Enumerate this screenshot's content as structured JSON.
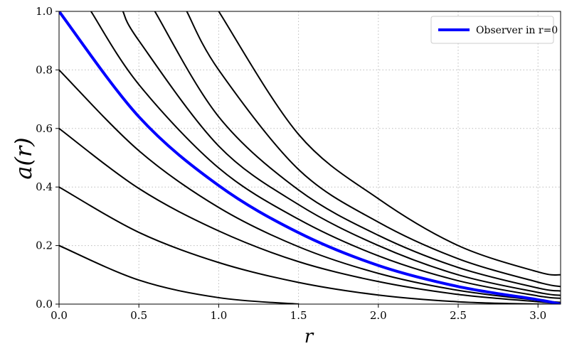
{
  "chart_data": {
    "type": "line",
    "xlabel": "r",
    "ylabel": "a(r)",
    "xlim": [
      0,
      3.1416
    ],
    "ylim": [
      0,
      1.0
    ],
    "xticks": [
      "0.0",
      "0.5",
      "1.0",
      "1.5",
      "2.0",
      "2.5",
      "3.0"
    ],
    "yticks": [
      "0.0",
      "0.2",
      "0.4",
      "0.6",
      "0.8",
      "1.0"
    ],
    "grid": true,
    "legend_position": "top-right",
    "legend": [
      "Observer in r=0"
    ],
    "colors": {
      "highlight": "#0000ff",
      "curves": "#000000",
      "grid": "#bbbbbb"
    },
    "series": [
      {
        "name": "",
        "color": "#000000",
        "width": 2,
        "x": [
          0.0,
          0.5,
          1.0,
          1.5
        ],
        "y": [
          0.2,
          0.082,
          0.022,
          0.0
        ]
      },
      {
        "name": "",
        "color": "#000000",
        "width": 2,
        "x": [
          0.0,
          0.5,
          1.0,
          1.5,
          2.0,
          2.5,
          3.0,
          3.14
        ],
        "y": [
          0.4,
          0.245,
          0.142,
          0.074,
          0.031,
          0.008,
          0.0,
          0.0
        ]
      },
      {
        "name": "",
        "color": "#000000",
        "width": 2,
        "x": [
          0.0,
          0.5,
          1.0,
          1.5,
          2.0,
          2.5,
          3.0,
          3.14
        ],
        "y": [
          0.6,
          0.395,
          0.25,
          0.145,
          0.077,
          0.033,
          0.008,
          0.002
        ]
      },
      {
        "name": "",
        "color": "#000000",
        "width": 2,
        "x": [
          0.0,
          0.5,
          1.0,
          1.5,
          2.0,
          2.5,
          3.0,
          3.14
        ],
        "y": [
          0.8,
          0.524,
          0.33,
          0.196,
          0.105,
          0.047,
          0.013,
          0.006
        ]
      },
      {
        "name": "Observer in r=0",
        "color": "#0000ff",
        "width": 4,
        "x": [
          0.0,
          0.5,
          1.0,
          1.5,
          2.0,
          2.5,
          3.0,
          3.14
        ],
        "y": [
          1.0,
          0.64,
          0.405,
          0.244,
          0.132,
          0.06,
          0.015,
          0.0
        ]
      },
      {
        "name": "",
        "color": "#000000",
        "width": 2,
        "x": [
          0.2,
          0.5,
          1.0,
          1.5,
          2.0,
          2.5,
          3.0,
          3.14
        ],
        "y": [
          1.0,
          0.75,
          0.465,
          0.29,
          0.165,
          0.08,
          0.028,
          0.02
        ]
      },
      {
        "name": "",
        "color": "#000000",
        "width": 2,
        "x": [
          0.4,
          0.5,
          1.0,
          1.5,
          2.0,
          2.5,
          3.0,
          3.14
        ],
        "y": [
          1.0,
          0.9,
          0.54,
          0.34,
          0.2,
          0.1,
          0.04,
          0.03
        ]
      },
      {
        "name": "",
        "color": "#000000",
        "width": 2,
        "x": [
          0.6,
          1.0,
          1.5,
          2.0,
          2.5,
          3.0,
          3.14
        ],
        "y": [
          1.0,
          0.64,
          0.39,
          0.235,
          0.125,
          0.055,
          0.045
        ]
      },
      {
        "name": "",
        "color": "#000000",
        "width": 2,
        "x": [
          0.8,
          1.0,
          1.5,
          2.0,
          2.5,
          3.0,
          3.14
        ],
        "y": [
          1.0,
          0.8,
          0.46,
          0.28,
          0.155,
          0.075,
          0.06
        ]
      },
      {
        "name": "",
        "color": "#000000",
        "width": 2,
        "x": [
          1.0,
          1.5,
          2.0,
          2.5,
          3.0,
          3.14
        ],
        "y": [
          1.0,
          0.58,
          0.36,
          0.2,
          0.11,
          0.1
        ]
      }
    ]
  }
}
